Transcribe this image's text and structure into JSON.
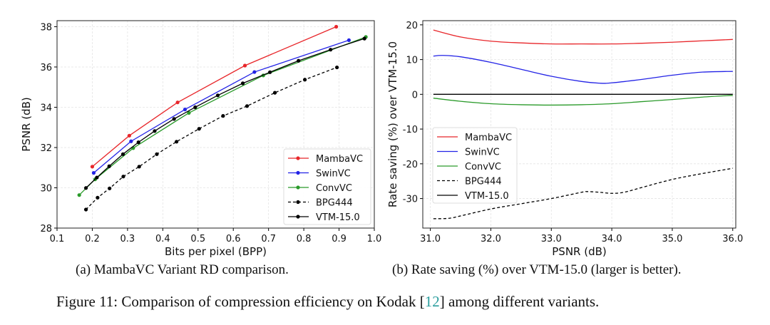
{
  "chart_data": [
    {
      "type": "line",
      "caption": "(a) MambaVC Variant RD comparison.",
      "xlabel": "Bits per pixel (BPP)",
      "ylabel": "PSNR (dB)",
      "xlim": [
        0.1,
        1.0
      ],
      "ylim": [
        28,
        38.3
      ],
      "xticks": [
        "0.1",
        "0.2",
        "0.3",
        "0.4",
        "0.5",
        "0.6",
        "0.7",
        "0.8",
        "0.9",
        "1.0"
      ],
      "yticks": [
        "28",
        "30",
        "32",
        "34",
        "36",
        "38"
      ],
      "grid": true,
      "legend_position": "lower-right",
      "series": [
        {
          "name": "MambaVC",
          "color": "#e8262a",
          "dash": false,
          "markers": true,
          "x": [
            0.2,
            0.305,
            0.442,
            0.633,
            0.892
          ],
          "y": [
            31.05,
            32.59,
            34.24,
            36.07,
            38.0
          ]
        },
        {
          "name": "SwinVC",
          "color": "#2323e6",
          "dash": false,
          "markers": true,
          "x": [
            0.204,
            0.31,
            0.463,
            0.66,
            0.928
          ],
          "y": [
            30.74,
            32.31,
            33.89,
            35.75,
            37.33
          ]
        },
        {
          "name": "ConvVC",
          "color": "#2a9a2a",
          "dash": false,
          "markers": true,
          "x": [
            0.163,
            0.208,
            0.316,
            0.474,
            0.685,
            0.976
          ],
          "y": [
            29.64,
            30.42,
            31.97,
            33.72,
            35.58,
            37.49
          ]
        },
        {
          "name": "BPG444",
          "color": "#000000",
          "dash": true,
          "markers": true,
          "x": [
            0.182,
            0.215,
            0.249,
            0.288,
            0.333,
            0.383,
            0.439,
            0.503,
            0.571,
            0.639,
            0.718,
            0.803,
            0.894
          ],
          "y": [
            28.92,
            29.51,
            29.97,
            30.56,
            31.05,
            31.67,
            32.29,
            32.93,
            33.57,
            34.06,
            34.72,
            35.37,
            35.98
          ]
        },
        {
          "name": "VTM-15.0",
          "color": "#000000",
          "dash": false,
          "markers": true,
          "x": [
            0.182,
            0.213,
            0.248,
            0.287,
            0.331,
            0.377,
            0.432,
            0.492,
            0.556,
            0.627,
            0.704,
            0.785,
            0.876,
            0.972
          ],
          "y": [
            29.99,
            30.51,
            31.07,
            31.67,
            32.26,
            32.82,
            33.42,
            34.0,
            34.59,
            35.19,
            35.74,
            36.31,
            36.86,
            37.41
          ]
        }
      ]
    },
    {
      "type": "line",
      "caption": "(b) Rate saving (%) over VTM-15.0 (larger is better).",
      "xlabel": "PSNR (dB)",
      "ylabel": "Rate saving (%) over VTM-15.0",
      "xlim": [
        30.875,
        36.05
      ],
      "ylim": [
        -38.5,
        21.2
      ],
      "xticks": [
        "31.0",
        "32.0",
        "33.0",
        "34.0",
        "35.0",
        "36.0"
      ],
      "yticks": [
        "-30",
        "-20",
        "-10",
        "0",
        "10",
        "20"
      ],
      "grid": true,
      "legend_position": "lower-left",
      "series": [
        {
          "name": "MambaVC",
          "color": "#e8262a",
          "dash": false,
          "markers": false,
          "x": [
            31.05,
            31.5,
            32,
            32.5,
            33,
            33.5,
            34,
            34.5,
            35,
            35.5,
            36
          ],
          "y": [
            18.5,
            16.5,
            15.3,
            14.8,
            14.5,
            14.5,
            14.5,
            14.7,
            15.0,
            15.4,
            15.8
          ]
        },
        {
          "name": "SwinVC",
          "color": "#2323e6",
          "dash": false,
          "markers": false,
          "x": [
            31.05,
            31.2,
            31.5,
            32,
            32.5,
            33,
            33.5,
            33.8,
            34,
            34.5,
            35,
            35.5,
            36
          ],
          "y": [
            11.0,
            11.2,
            10.8,
            9.2,
            7.2,
            5.2,
            3.7,
            3.2,
            3.3,
            4.3,
            5.5,
            6.4,
            6.6
          ]
        },
        {
          "name": "ConvVC",
          "color": "#2a9a2a",
          "dash": false,
          "markers": false,
          "x": [
            31.05,
            31.5,
            32,
            32.5,
            33,
            33.5,
            34,
            34.5,
            35,
            35.5,
            36
          ],
          "y": [
            -1.1,
            -2.0,
            -2.7,
            -3.0,
            -3.1,
            -3.0,
            -2.7,
            -2.1,
            -1.5,
            -0.8,
            -0.3
          ]
        },
        {
          "name": "BPG444",
          "color": "#000000",
          "dash": true,
          "markers": false,
          "x": [
            31.05,
            31.3,
            31.5,
            32,
            32.5,
            33,
            33.5,
            33.6,
            33.8,
            34,
            34.2,
            34.5,
            35,
            35.5,
            36
          ],
          "y": [
            -35.8,
            -35.7,
            -35.0,
            -33.0,
            -31.5,
            -30.0,
            -28.2,
            -28.0,
            -28.2,
            -28.5,
            -28.2,
            -26.8,
            -24.5,
            -22.8,
            -21.3
          ]
        },
        {
          "name": "VTM-15.0",
          "color": "#000000",
          "dash": false,
          "markers": false,
          "x": [
            31.05,
            36.0
          ],
          "y": [
            0,
            0
          ]
        }
      ]
    }
  ],
  "figure_caption": {
    "prefix": "Figure 11: Comparison of compression efficiency on Kodak [",
    "ref": "12",
    "suffix": "] among different variants."
  }
}
